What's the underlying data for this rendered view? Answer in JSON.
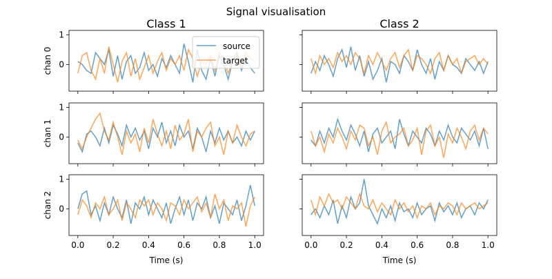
{
  "chart_data": {
    "type": "line",
    "title": "Signal visualisation",
    "columns": [
      "Class 1",
      "Class 2"
    ],
    "rows": [
      "chan 0",
      "chan 1",
      "chan 2"
    ],
    "xlabel": "Time (s)",
    "xlim": [
      -0.05,
      1.05
    ],
    "ylim": [
      -0.9,
      1.15
    ],
    "xticks": [
      "0.0",
      "0.2",
      "0.4",
      "0.6",
      "0.8",
      "1.0"
    ],
    "yticks": [
      "0",
      "1"
    ],
    "grid": false,
    "legend": {
      "placement": "upper-right",
      "subplot": "chan 0 / Class 1",
      "entries": [
        "source",
        "target"
      ]
    },
    "colors": {
      "source": "#1f77b4",
      "target": "#ff7f0e"
    },
    "x": [
      0,
      0.025,
      0.05,
      0.075,
      0.1,
      0.125,
      0.15,
      0.175,
      0.2,
      0.225,
      0.25,
      0.275,
      0.3,
      0.325,
      0.35,
      0.375,
      0.4,
      0.425,
      0.45,
      0.475,
      0.5,
      0.525,
      0.55,
      0.575,
      0.6,
      0.625,
      0.65,
      0.675,
      0.7,
      0.725,
      0.75,
      0.775,
      0.8,
      0.825,
      0.85,
      0.875,
      0.9,
      0.925,
      0.95,
      0.975,
      1.0
    ],
    "panels": [
      {
        "row": "chan 0",
        "col": "Class 1",
        "source": [
          0.1,
          0.0,
          -0.2,
          -0.3,
          0.4,
          0.2,
          0.0,
          0.5,
          -0.4,
          0.3,
          -0.5,
          0.1,
          0.3,
          -0.3,
          -0.1,
          0.4,
          -0.2,
          0.0,
          -0.4,
          0.2,
          -0.1,
          0.3,
          0.0,
          -0.3,
          0.7,
          0.1,
          -0.6,
          0.5,
          -0.2,
          -0.5,
          0.2,
          -0.4,
          0.3,
          0.0,
          -0.5,
          0.1,
          0.4,
          -0.2,
          0.2,
          -0.1,
          -0.3
        ],
        "target": [
          -0.3,
          0.3,
          0.4,
          -0.2,
          -0.5,
          0.2,
          -0.3,
          0.6,
          0.0,
          -0.6,
          0.1,
          0.4,
          -0.4,
          0.2,
          -0.5,
          -0.1,
          0.3,
          -0.3,
          0.1,
          0.4,
          -0.2,
          0.2,
          0.0,
          0.3,
          -0.2,
          0.5,
          0.2,
          -0.4,
          0.1,
          0.0,
          0.3,
          -0.2,
          0.4,
          0.2,
          -0.3,
          0.1,
          0.3,
          -0.1,
          0.4,
          0.2,
          0.1
        ]
      },
      {
        "row": "chan 0",
        "col": "Class 2",
        "source": [
          -0.3,
          0.1,
          -0.2,
          0.3,
          0.0,
          -0.4,
          0.2,
          0.5,
          -0.1,
          0.6,
          -0.2,
          0.3,
          -0.4,
          0.1,
          -0.5,
          -0.2,
          0.2,
          -0.6,
          0.1,
          0.0,
          -0.3,
          0.3,
          0.1,
          -0.2,
          0.5,
          0.0,
          -0.3,
          0.2,
          -0.5,
          0.1,
          -0.2,
          0.3,
          0.0,
          -0.1,
          -0.3,
          0.2,
          0.0,
          -0.2,
          0.1,
          -0.3,
          0.1
        ],
        "target": [
          0.2,
          -0.3,
          0.3,
          0.0,
          0.2,
          -0.1,
          0.4,
          0.1,
          0.3,
          0.0,
          0.4,
          0.2,
          -0.3,
          0.3,
          0.0,
          0.4,
          0.1,
          -0.2,
          0.2,
          0.4,
          -0.1,
          0.3,
          0.5,
          -0.2,
          0.3,
          0.2,
          0.0,
          -0.3,
          0.2,
          0.4,
          -0.2,
          0.3,
          0.0,
          0.2,
          -0.3,
          0.1,
          0.2,
          0.3,
          0.0,
          0.2,
          0.0
        ]
      },
      {
        "row": "chan 1",
        "col": "Class 1",
        "source": [
          -0.2,
          -0.5,
          0.1,
          0.2,
          0.0,
          -0.3,
          0.3,
          -0.2,
          0.4,
          0.1,
          -0.3,
          0.4,
          0.0,
          0.3,
          -0.1,
          0.2,
          -0.4,
          0.3,
          0.0,
          0.5,
          -0.2,
          0.2,
          -0.3,
          0.4,
          0.0,
          0.2,
          -0.4,
          0.3,
          0.0,
          -0.5,
          0.2,
          -0.2,
          0.3,
          -0.1,
          0.2,
          -0.2,
          0.0,
          -0.3,
          0.2,
          -0.1,
          0.2
        ],
        "target": [
          -0.1,
          -0.4,
          0.0,
          0.3,
          0.6,
          0.8,
          0.2,
          -0.1,
          0.5,
          0.0,
          -0.6,
          0.2,
          -0.2,
          0.1,
          -0.5,
          0.3,
          -0.2,
          0.6,
          0.1,
          -0.3,
          0.2,
          -0.4,
          0.4,
          -0.1,
          0.1,
          0.6,
          -0.5,
          0.2,
          0.0,
          0.3,
          0.5,
          -0.3,
          0.0,
          -0.6,
          0.2,
          -0.2,
          0.4,
          0.0,
          -0.3,
          0.1,
          0.2
        ]
      },
      {
        "row": "chan 1",
        "col": "Class 2",
        "source": [
          -0.1,
          -0.3,
          0.2,
          -0.2,
          0.3,
          0.0,
          0.6,
          0.2,
          -0.1,
          0.4,
          0.1,
          -0.3,
          0.2,
          -0.5,
          0.1,
          0.3,
          -0.2,
          0.0,
          0.2,
          -0.4,
          0.6,
          0.1,
          -0.3,
          0.2,
          0.0,
          -0.2,
          0.3,
          0.1,
          -0.3,
          0.2,
          -0.1,
          0.4,
          0.0,
          -0.2,
          0.3,
          0.1,
          -0.1,
          0.2,
          -0.3,
          0.3,
          -0.4
        ],
        "target": [
          0.2,
          -0.3,
          0.0,
          -0.5,
          0.1,
          -0.2,
          0.3,
          0.0,
          -0.4,
          0.2,
          -0.1,
          0.4,
          0.3,
          -0.3,
          0.0,
          -0.6,
          0.2,
          0.5,
          -0.2,
          0.0,
          0.1,
          0.3,
          -0.3,
          -0.1,
          0.3,
          -0.6,
          0.2,
          0.4,
          -0.3,
          0.0,
          -0.7,
          0.1,
          -0.2,
          0.3,
          0.0,
          -0.4,
          0.2,
          0.4,
          -0.1,
          0.3,
          0.1
        ]
      },
      {
        "row": "chan 2",
        "col": "Class 1",
        "source": [
          0.0,
          0.5,
          0.6,
          -0.2,
          0.1,
          -0.4,
          0.2,
          -0.2,
          0.4,
          0.0,
          -0.3,
          0.3,
          -0.5,
          0.2,
          0.0,
          0.4,
          -0.2,
          0.3,
          0.0,
          -0.3,
          0.2,
          -0.5,
          0.0,
          0.4,
          -0.2,
          0.3,
          -0.4,
          0.2,
          0.0,
          0.4,
          -0.3,
          0.1,
          -0.5,
          0.2,
          0.0,
          -0.2,
          0.3,
          -0.4,
          0.1,
          0.8,
          0.1
        ],
        "target": [
          -0.2,
          0.3,
          0.1,
          -0.3,
          0.2,
          0.0,
          0.4,
          -0.2,
          0.0,
          0.3,
          -0.4,
          0.2,
          0.0,
          -0.3,
          0.3,
          0.1,
          0.3,
          -0.2,
          0.2,
          0.0,
          -0.4,
          0.2,
          0.1,
          -0.2,
          0.3,
          0.0,
          0.2,
          0.4,
          -0.1,
          0.2,
          -0.3,
          0.5,
          0.0,
          0.3,
          -0.4,
          0.1,
          0.0,
          0.2,
          -0.6,
          0.1,
          0.4
        ]
      },
      {
        "row": "chan 2",
        "col": "Class 2",
        "source": [
          -0.2,
          0.0,
          -0.3,
          0.1,
          -0.2,
          0.3,
          -0.5,
          0.1,
          -0.3,
          0.4,
          0.0,
          0.2,
          1.0,
          0.1,
          -0.2,
          -0.5,
          0.0,
          -0.3,
          0.1,
          -0.4,
          0.2,
          -0.1,
          0.0,
          -0.3,
          0.2,
          -0.2,
          0.0,
          0.1,
          -0.4,
          0.2,
          -0.1,
          0.1,
          -0.2,
          0.2,
          -0.3,
          0.0,
          0.1,
          -0.2,
          0.2,
          0.0,
          0.3
        ],
        "target": [
          0.3,
          -0.2,
          0.4,
          0.1,
          0.5,
          0.2,
          0.3,
          0.0,
          0.4,
          0.2,
          0.0,
          0.5,
          0.1,
          0.0,
          0.3,
          -0.1,
          0.2,
          0.0,
          -0.2,
          0.3,
          0.0,
          0.2,
          -0.1,
          0.1,
          -0.3,
          0.1,
          0.0,
          0.2,
          -0.2,
          0.1,
          0.0,
          0.2,
          0.1,
          -0.2,
          0.2,
          0.0,
          0.1,
          0.2,
          0.0,
          0.1,
          0.2
        ]
      }
    ]
  }
}
